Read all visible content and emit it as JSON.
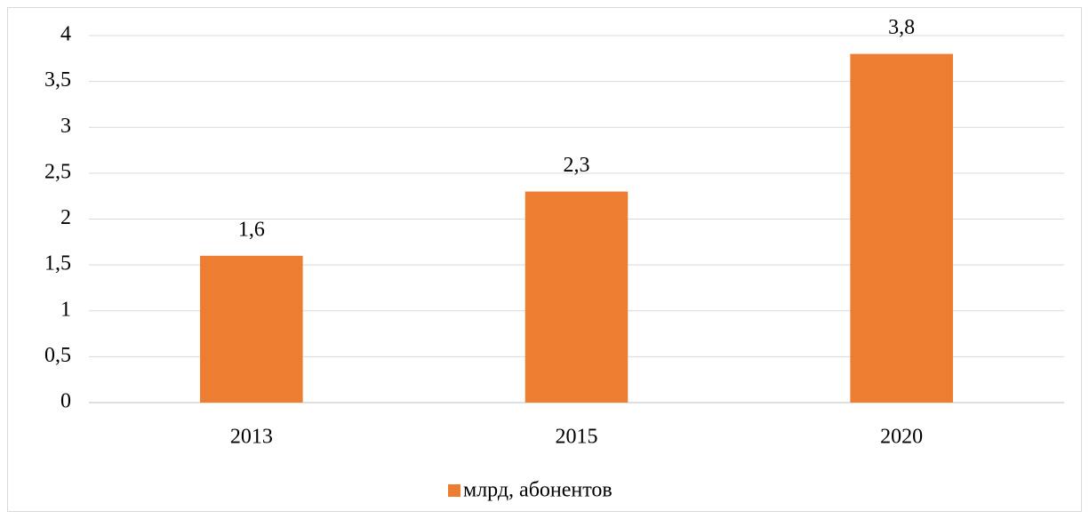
{
  "chart_data": {
    "type": "bar",
    "categories": [
      "2013",
      "2015",
      "2020"
    ],
    "series": [
      {
        "name": "млрд, абонентов",
        "color": "#ed7d31",
        "values": [
          1.6,
          2.3,
          3.8
        ],
        "value_labels": [
          "1,6",
          "2,3",
          "3,8"
        ]
      }
    ],
    "ylim": [
      0,
      4
    ],
    "yticks": [
      0,
      {
        "value": 0.5,
        "label": "0,5"
      },
      1,
      {
        "value": 1.5,
        "label": "1,5"
      },
      2,
      {
        "value": 2.5,
        "label": "2,5"
      },
      3,
      {
        "value": 3.5,
        "label": "3,5"
      },
      4
    ],
    "grid": true,
    "legend": "bottom"
  }
}
